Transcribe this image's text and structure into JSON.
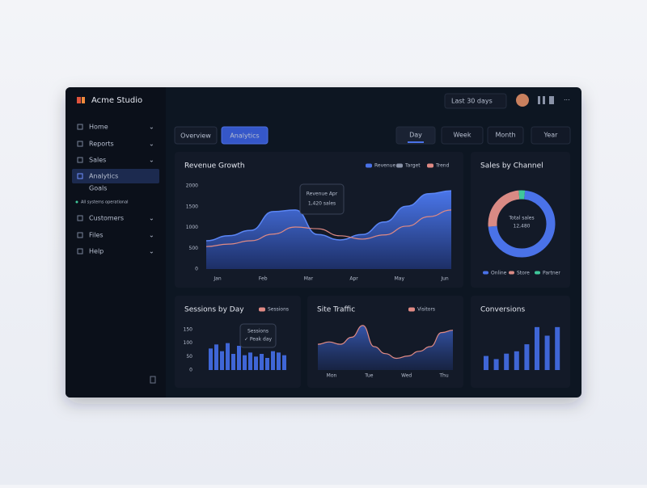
{
  "app": {
    "name": "Acme Studio"
  },
  "header": {
    "range": "Last 30 days"
  },
  "sidebar": {
    "items": [
      "Home",
      "Reports",
      "Sales",
      "Analytics",
      "Goals",
      "Customers",
      "Files",
      "Help"
    ],
    "active": 3,
    "status": "All systems operational"
  },
  "tabs": {
    "items": [
      "Overview",
      "Analytics"
    ],
    "active": 1
  },
  "periods": {
    "items": [
      "Day",
      "Week",
      "Month",
      "Year"
    ],
    "active": 0
  },
  "revenue": {
    "title": "Revenue Growth",
    "legend": [
      {
        "name": "Revenue",
        "color": "#4a72e8"
      },
      {
        "name": "Target",
        "color": "#8a93a8"
      },
      {
        "name": "Trend",
        "color": "#e08a84"
      }
    ],
    "ylim": [
      0,
      2000
    ],
    "yticks": [
      0,
      500,
      1000,
      1500,
      2000
    ],
    "xlabels": [
      "Jan",
      "Feb",
      "Mar",
      "Apr",
      "May",
      "Jun"
    ],
    "area": {
      "color": "#3f66d6",
      "values": [
        680,
        800,
        930,
        1380,
        1420,
        830,
        700,
        830,
        1130,
        1510,
        1810,
        1880
      ]
    },
    "line": {
      "color": "#e08a84",
      "values": [
        540,
        600,
        680,
        840,
        1010,
        970,
        800,
        720,
        820,
        1030,
        1260,
        1420
      ]
    },
    "tooltip": [
      "Revenue Apr",
      "1,420 sales"
    ]
  },
  "channels": {
    "title": "Sales by Channel",
    "center": [
      "Total sales",
      "12,480"
    ],
    "segments": [
      {
        "name": "Online",
        "color": "#4a72e8",
        "value": 72
      },
      {
        "name": "Store",
        "color": "#d98a84",
        "value": 25
      },
      {
        "name": "Partner",
        "color": "#3fc79a",
        "value": 3
      }
    ]
  },
  "sessions": {
    "title": "Sessions by Day",
    "legend": [
      {
        "name": "Sessions",
        "color": "#e08a84"
      }
    ],
    "ylim": [
      0,
      150
    ],
    "yticks": [
      0,
      50,
      100,
      150
    ],
    "color": "#3f66d6",
    "values": [
      80,
      95,
      70,
      100,
      60,
      90,
      55,
      65,
      50,
      60,
      45,
      70,
      65,
      55
    ],
    "tooltip": [
      "Sessions",
      "✓ Peak day"
    ]
  },
  "traffic": {
    "title": "Site Traffic",
    "legend": [
      {
        "name": "Visitors",
        "color": "#e08a84"
      }
    ],
    "ylim": [
      0,
      100
    ],
    "xlabels": [
      "Mon",
      "Tue",
      "Wed",
      "Thu"
    ],
    "color": "#3f66d6",
    "values": [
      55,
      60,
      55,
      70,
      95,
      50,
      35,
      25,
      30,
      40,
      50,
      80,
      85
    ]
  },
  "conversions": {
    "title": "Conversions",
    "ylim": [
      0,
      60
    ],
    "color": "#3f66d6",
    "values": [
      18,
      14,
      21,
      24,
      33,
      55,
      44,
      55
    ]
  }
}
